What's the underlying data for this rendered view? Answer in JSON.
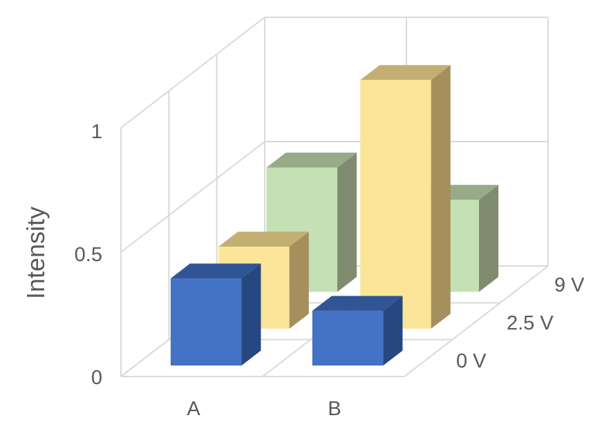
{
  "chart_data": {
    "type": "bar3d",
    "title": "",
    "ylabel": "Intensity",
    "xlabel": "",
    "categories": [
      "A",
      "B"
    ],
    "ylim": [
      0,
      1
    ],
    "yticks": [
      "0",
      "0.5",
      "1"
    ],
    "ytick_values": [
      0,
      0.5,
      1
    ],
    "grid": true,
    "series": [
      {
        "name": "0 V",
        "values": [
          0.35,
          0.22
        ],
        "colors": {
          "front": "#4472C4",
          "top": "#2F5597",
          "side": "#264780"
        }
      },
      {
        "name": "2.5 V",
        "values": [
          0.33,
          1.0
        ],
        "colors": {
          "front": "#FBE598",
          "top": "#C4AF73",
          "side": "#A58F5D"
        }
      },
      {
        "name": "9 V",
        "values": [
          0.5,
          0.37
        ],
        "colors": {
          "front": "#C5E0B4",
          "top": "#97AB89",
          "side": "#808C70"
        }
      }
    ]
  }
}
